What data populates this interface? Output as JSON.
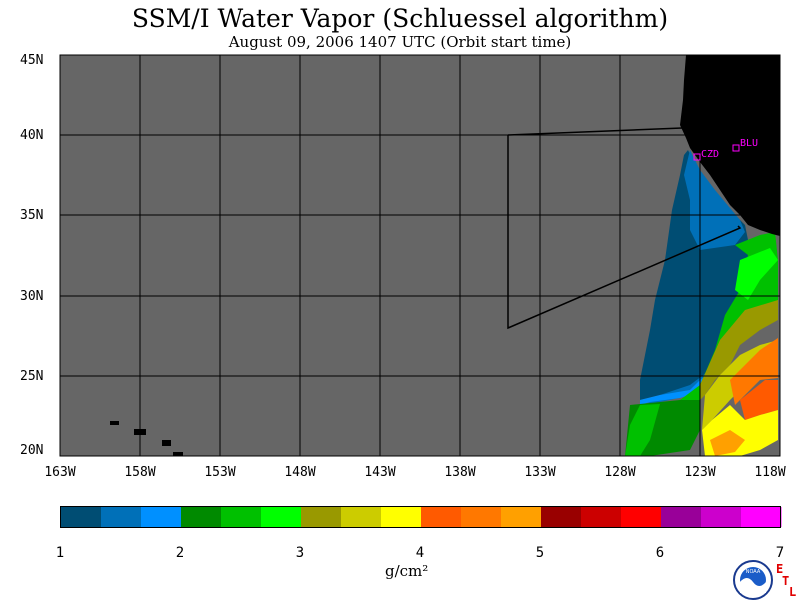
{
  "title": "SSM/I Water Vapor (Schluessel algorithm)",
  "subtitle": "August 09, 2006  1407 UTC  (Orbit start time)",
  "map": {
    "lat_labels": [
      "45N",
      "40N",
      "35N",
      "30N",
      "25N",
      "20N"
    ],
    "lon_labels": [
      "163W",
      "158W",
      "153W",
      "148W",
      "143W",
      "138W",
      "133W",
      "128W",
      "123W",
      "118W"
    ],
    "lat_range": [
      20,
      45
    ],
    "lon_range": [
      -163,
      -118
    ],
    "stations": [
      {
        "label": "CZD",
        "lat": 38.6,
        "lon": -123.2
      },
      {
        "label": "BLU",
        "lat": 39.3,
        "lon": -120.8
      }
    ],
    "colors": {
      "ocean_no_data": "#666666",
      "land": "#000000",
      "station": "#ff00ff"
    }
  },
  "colorbar": {
    "units": "g/cm²",
    "ticks": [
      "1",
      "2",
      "3",
      "4",
      "5",
      "6",
      "7"
    ],
    "min": 1,
    "max": 7,
    "colors": [
      "#004d73",
      "#0070b8",
      "#0090ff",
      "#008a00",
      "#00c000",
      "#00ff00",
      "#999900",
      "#cccc00",
      "#ffff00",
      "#ff5a00",
      "#ff7800",
      "#ffa000",
      "#990000",
      "#cc0000",
      "#ff0000",
      "#990099",
      "#cc00cc",
      "#ff00ff"
    ]
  },
  "footer": {
    "logo": "NOAA",
    "etl": [
      "E",
      "T",
      "L"
    ]
  }
}
